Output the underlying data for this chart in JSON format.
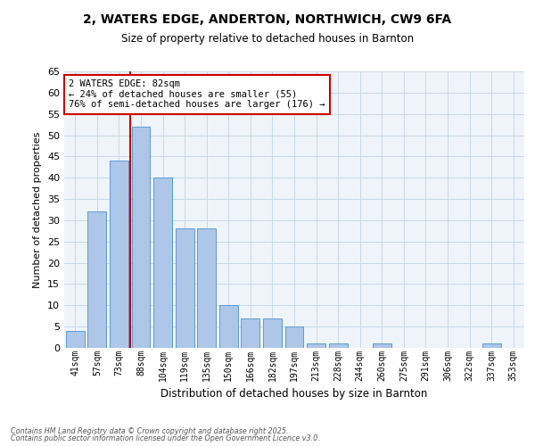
{
  "title_line1": "2, WATERS EDGE, ANDERTON, NORTHWICH, CW9 6FA",
  "title_line2": "Size of property relative to detached houses in Barnton",
  "xlabel": "Distribution of detached houses by size in Barnton",
  "ylabel": "Number of detached properties",
  "categories": [
    "41sqm",
    "57sqm",
    "73sqm",
    "88sqm",
    "104sqm",
    "119sqm",
    "135sqm",
    "150sqm",
    "166sqm",
    "182sqm",
    "197sqm",
    "213sqm",
    "228sqm",
    "244sqm",
    "260sqm",
    "275sqm",
    "291sqm",
    "306sqm",
    "322sqm",
    "337sqm",
    "353sqm"
  ],
  "values": [
    4,
    32,
    44,
    52,
    40,
    28,
    28,
    10,
    7,
    7,
    5,
    1,
    1,
    0,
    1,
    0,
    0,
    0,
    0,
    1,
    0
  ],
  "bar_color": "#aec6e8",
  "bar_edge_color": "#5b9bd5",
  "grid_color": "#c8d8e8",
  "red_line_x": 2.5,
  "annotation_title": "2 WATERS EDGE: 82sqm",
  "annotation_line1": "← 24% of detached houses are smaller (55)",
  "annotation_line2": "76% of semi-detached houses are larger (176) →",
  "annotation_box_color": "#ffffff",
  "annotation_box_edge": "#cc0000",
  "footer_line1": "Contains HM Land Registry data © Crown copyright and database right 2025.",
  "footer_line2": "Contains public sector information licensed under the Open Government Licence v3.0.",
  "ylim": [
    0,
    65
  ],
  "yticks": [
    0,
    5,
    10,
    15,
    20,
    25,
    30,
    35,
    40,
    45,
    50,
    55,
    60,
    65
  ],
  "bg_color": "#ffffff",
  "plot_bg_color": "#eef4fa"
}
